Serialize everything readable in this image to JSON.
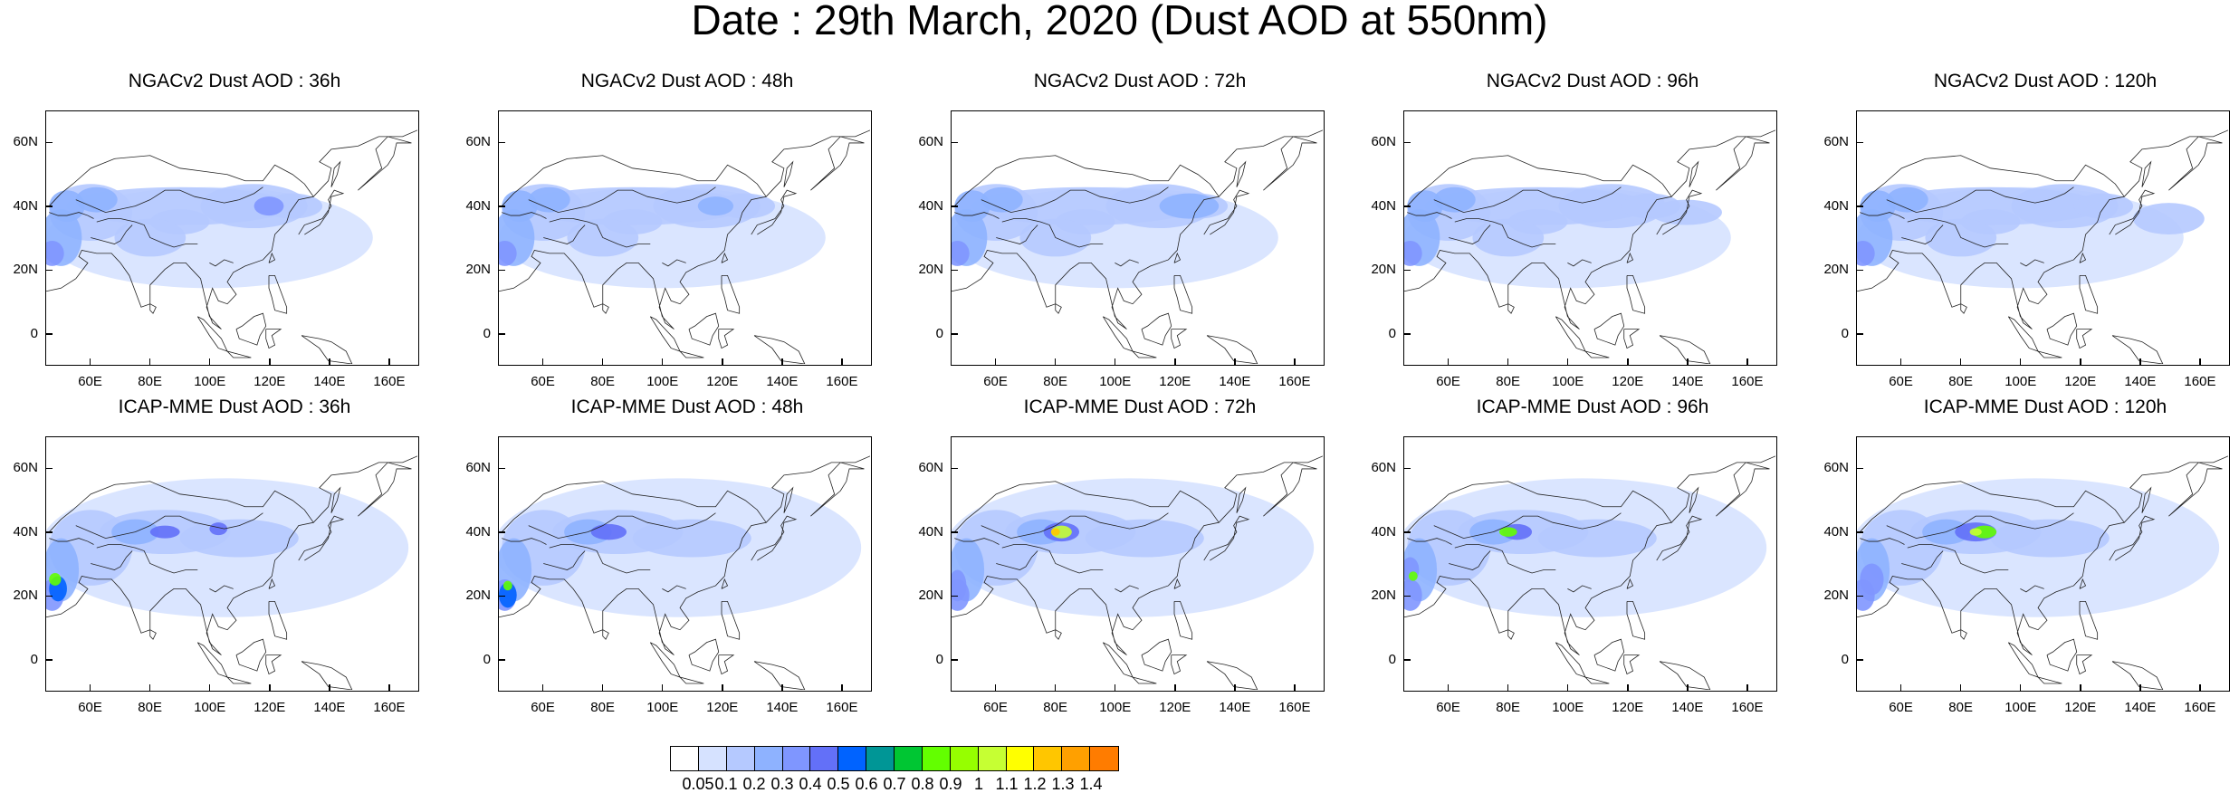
{
  "title": "Date : 29th March, 2020 (Dust AOD at 550nm)",
  "y_axis_labels": [
    "60N",
    "40N",
    "20N",
    "0"
  ],
  "x_axis_labels": [
    "60E",
    "80E",
    "100E",
    "120E",
    "140E",
    "160E"
  ],
  "panels": [
    {
      "title": "NGACv2 Dust AOD : 36h",
      "model": "NGACv2",
      "lead_hours": 36
    },
    {
      "title": "NGACv2 Dust AOD : 48h",
      "model": "NGACv2",
      "lead_hours": 48
    },
    {
      "title": "NGACv2 Dust AOD : 72h",
      "model": "NGACv2",
      "lead_hours": 72
    },
    {
      "title": "NGACv2 Dust AOD : 96h",
      "model": "NGACv2",
      "lead_hours": 96
    },
    {
      "title": "NGACv2 Dust AOD : 120h",
      "model": "NGACv2",
      "lead_hours": 120
    },
    {
      "title": "ICAP-MME Dust AOD : 36h",
      "model": "ICAP-MME",
      "lead_hours": 36
    },
    {
      "title": "ICAP-MME Dust AOD : 48h",
      "model": "ICAP-MME",
      "lead_hours": 48
    },
    {
      "title": "ICAP-MME Dust AOD : 72h",
      "model": "ICAP-MME",
      "lead_hours": 72
    },
    {
      "title": "ICAP-MME Dust AOD : 96h",
      "model": "ICAP-MME",
      "lead_hours": 96
    },
    {
      "title": "ICAP-MME Dust AOD : 120h",
      "model": "ICAP-MME",
      "lead_hours": 120
    }
  ],
  "colorbar": {
    "labels": [
      "0.05",
      "0.1",
      "0.2",
      "0.3",
      "0.4",
      "0.5",
      "0.6",
      "0.7",
      "0.8",
      "0.9",
      "1",
      "1.1",
      "1.2",
      "1.3",
      "1.4"
    ],
    "colors": [
      "#ffffff",
      "#d6e2ff",
      "#b5c9ff",
      "#8eb2ff",
      "#7f96ff",
      "#6370f8",
      "#0063ff",
      "#009696",
      "#00c633",
      "#63ff00",
      "#96ff00",
      "#c6ff33",
      "#ffff00",
      "#ffc600",
      "#ffa000",
      "#ff7c00",
      "#ff1900"
    ]
  }
}
